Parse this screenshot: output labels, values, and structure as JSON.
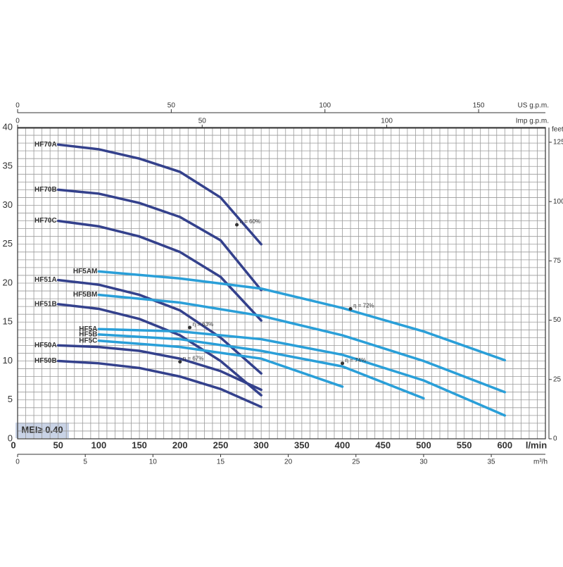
{
  "chart_data": {
    "type": "line",
    "x_label": "l/min",
    "xlim": [
      0,
      650
    ],
    "xticks": [
      0,
      50,
      100,
      150,
      200,
      250,
      300,
      350,
      400,
      450,
      500,
      550,
      600
    ],
    "ylim": [
      0,
      40
    ],
    "yticks": [
      0,
      5,
      10,
      15,
      20,
      25,
      30,
      35,
      40
    ],
    "x_grid": [
      0,
      10,
      20,
      30,
      40,
      50,
      60,
      70,
      80,
      90,
      100,
      110,
      120,
      130,
      140,
      150,
      160,
      170,
      180,
      190,
      200,
      210,
      220,
      230,
      240,
      250,
      260,
      270,
      280,
      290,
      300,
      310,
      320,
      330,
      340,
      350,
      360,
      370,
      380,
      390,
      400,
      410,
      420,
      430,
      440,
      450,
      460,
      470,
      480,
      490,
      500,
      510,
      520,
      530,
      540,
      550,
      560,
      570,
      580,
      590,
      600,
      610,
      620,
      630,
      640,
      650
    ],
    "y_grid": [
      0,
      1,
      2,
      3,
      4,
      5,
      6,
      7,
      8,
      9,
      10,
      11,
      12,
      13,
      14,
      15,
      16,
      17,
      18,
      19,
      20,
      21,
      22,
      23,
      24,
      25,
      26,
      27,
      28,
      29,
      30,
      31,
      32,
      33,
      34,
      35,
      36,
      37,
      38,
      39,
      40
    ],
    "top_axes": [
      {
        "label": "US g.p.m.",
        "lim": [
          0,
          171.73
        ],
        "ticks": [
          0,
          50,
          100,
          150
        ]
      },
      {
        "label": "Imp g.p.m.",
        "lim": [
          0,
          142.98
        ],
        "ticks": [
          0,
          50,
          100
        ]
      }
    ],
    "bottom_axis2": {
      "label": "m³/h",
      "lim": [
        0,
        39
      ],
      "ticks": [
        0,
        5,
        10,
        15,
        20,
        25,
        30,
        35
      ]
    },
    "right_axis": {
      "label": "feet",
      "lim": [
        0,
        131.23
      ],
      "ticks": [
        0,
        25,
        50,
        75,
        100,
        125
      ]
    },
    "badge": "MEI≥ 0.40",
    "series": [
      {
        "name": "HF70A",
        "color": "#34418c",
        "x": [
          50,
          100,
          150,
          200,
          250,
          300
        ],
        "values": [
          37.8,
          37.2,
          36.0,
          34.3,
          31.0,
          25.0
        ]
      },
      {
        "name": "HF70B",
        "color": "#34418c",
        "x": [
          50,
          100,
          150,
          200,
          250,
          300
        ],
        "values": [
          32.0,
          31.5,
          30.3,
          28.5,
          25.5,
          19.1
        ]
      },
      {
        "name": "HF70C",
        "color": "#34418c",
        "x": [
          50,
          100,
          150,
          200,
          250,
          300
        ],
        "values": [
          28.0,
          27.3,
          26.0,
          24.0,
          20.8,
          15.2
        ]
      },
      {
        "name": "HF51A",
        "color": "#34418c",
        "x": [
          50,
          100,
          150,
          200,
          250,
          300
        ],
        "values": [
          20.4,
          19.8,
          18.5,
          16.5,
          13.0,
          8.4
        ]
      },
      {
        "name": "HF51B",
        "color": "#34418c",
        "x": [
          50,
          100,
          150,
          200,
          250,
          300
        ],
        "values": [
          17.3,
          16.7,
          15.4,
          13.3,
          10.0,
          5.6
        ]
      },
      {
        "name": "HF50A",
        "color": "#34418c",
        "x": [
          50,
          100,
          150,
          200,
          250,
          300
        ],
        "values": [
          12.0,
          11.8,
          11.3,
          10.3,
          8.7,
          6.3
        ]
      },
      {
        "name": "HF50B",
        "color": "#34418c",
        "x": [
          50,
          100,
          150,
          200,
          250,
          300
        ],
        "values": [
          10.0,
          9.7,
          9.1,
          8.0,
          6.4,
          4.1
        ]
      },
      {
        "name": "HF5AM",
        "color": "#2a9fd8",
        "x": [
          100,
          200,
          300,
          400,
          500,
          600
        ],
        "values": [
          21.5,
          20.6,
          19.3,
          16.8,
          13.8,
          10.1
        ]
      },
      {
        "name": "HF5BM",
        "color": "#2a9fd8",
        "x": [
          100,
          200,
          300,
          400,
          500,
          600
        ],
        "values": [
          18.5,
          17.5,
          15.8,
          13.3,
          10.0,
          6.0
        ]
      },
      {
        "name": "HF5A",
        "color": "#2a9fd8",
        "x": [
          100,
          200,
          300,
          400,
          500,
          600
        ],
        "values": [
          14.1,
          13.8,
          12.8,
          10.8,
          7.5,
          3.0
        ]
      },
      {
        "name": "HF5B",
        "color": "#2a9fd8",
        "x": [
          100,
          200,
          300,
          400,
          500
        ],
        "values": [
          13.4,
          12.8,
          11.3,
          9.3,
          5.2
        ]
      },
      {
        "name": "HF5C",
        "color": "#2a9fd8",
        "x": [
          100,
          200,
          300,
          400
        ],
        "values": [
          12.6,
          11.8,
          10.3,
          6.7
        ]
      }
    ],
    "annotations": [
      {
        "text": "η = 60%",
        "x": 270,
        "y": 27.5
      },
      {
        "text": "η = 72%",
        "x": 410,
        "y": 16.7
      },
      {
        "text": "η = 63%",
        "x": 212,
        "y": 14.3
      },
      {
        "text": "η = 67%",
        "x": 200,
        "y": 9.9
      },
      {
        "text": "η = 74%",
        "x": 400,
        "y": 9.7
      }
    ]
  }
}
